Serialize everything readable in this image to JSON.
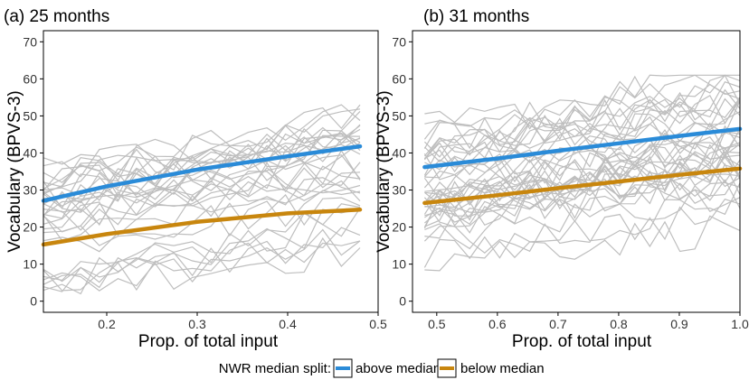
{
  "colors": {
    "above_median": "#2A8BD8",
    "below_median": "#C8860E",
    "individual": "#BEBEBE",
    "axis": "#000000"
  },
  "legend": {
    "title": "NWR median split:",
    "items": [
      {
        "label": "above median",
        "color": "#2A8BD8"
      },
      {
        "label": "below median",
        "color": "#C8860E"
      }
    ]
  },
  "chart_data": [
    {
      "type": "line",
      "title": "(a) 25 months",
      "xlabel": "Prop. of total input",
      "ylabel": "Vocabulary (BPVS-3)",
      "xlim": [
        0.13,
        0.5
      ],
      "ylim": [
        -3,
        73
      ],
      "xticks": [
        0.2,
        0.3,
        0.4,
        0.5
      ],
      "xtick_labels": [
        "0.2",
        "0.3",
        "0.4",
        "0.5"
      ],
      "yticks": [
        0,
        10,
        20,
        30,
        40,
        50,
        60,
        70
      ],
      "ytick_labels": [
        "0",
        "10",
        "20",
        "30",
        "40",
        "50",
        "60",
        "70"
      ],
      "grid": false,
      "series": [
        {
          "name": "above median",
          "x": [
            0.13,
            0.2,
            0.3,
            0.4,
            0.48
          ],
          "y": [
            27.1,
            31.0,
            35.5,
            39.1,
            41.8
          ]
        },
        {
          "name": "below median",
          "x": [
            0.13,
            0.2,
            0.3,
            0.4,
            0.48
          ],
          "y": [
            15.3,
            18.1,
            21.4,
            23.7,
            24.7
          ]
        }
      ],
      "individual_lines": {
        "count": 32,
        "x_range": [
          0.13,
          0.48
        ],
        "y_ranges": [
          [
            2,
            53
          ]
        ]
      }
    },
    {
      "type": "line",
      "title": "(b) 31 months",
      "xlabel": "Prop. of total input",
      "ylabel": "Vocabulary (BPVS-3)",
      "xlim": [
        0.46,
        1.0
      ],
      "ylim": [
        -3,
        73
      ],
      "xticks": [
        0.5,
        0.6,
        0.7,
        0.8,
        0.9,
        1.0
      ],
      "xtick_labels": [
        "0.5",
        "0.6",
        "0.7",
        "0.8",
        "0.9",
        "1.0"
      ],
      "yticks": [
        0,
        10,
        20,
        30,
        40,
        50,
        60,
        70
      ],
      "ytick_labels": [
        "0",
        "10",
        "20",
        "30",
        "40",
        "50",
        "60",
        "70"
      ],
      "grid": false,
      "series": [
        {
          "name": "above median",
          "x": [
            0.48,
            0.6,
            0.7,
            0.8,
            0.9,
            1.0
          ],
          "y": [
            36.2,
            38.5,
            40.6,
            42.6,
            44.6,
            46.5
          ]
        },
        {
          "name": "below median",
          "x": [
            0.48,
            0.6,
            0.7,
            0.8,
            0.9,
            1.0
          ],
          "y": [
            26.5,
            28.6,
            30.5,
            32.3,
            34.1,
            35.8
          ]
        }
      ],
      "individual_lines": {
        "count": 40,
        "x_range": [
          0.48,
          1.0
        ],
        "y_ranges": [
          [
            8,
            61
          ]
        ]
      }
    }
  ]
}
